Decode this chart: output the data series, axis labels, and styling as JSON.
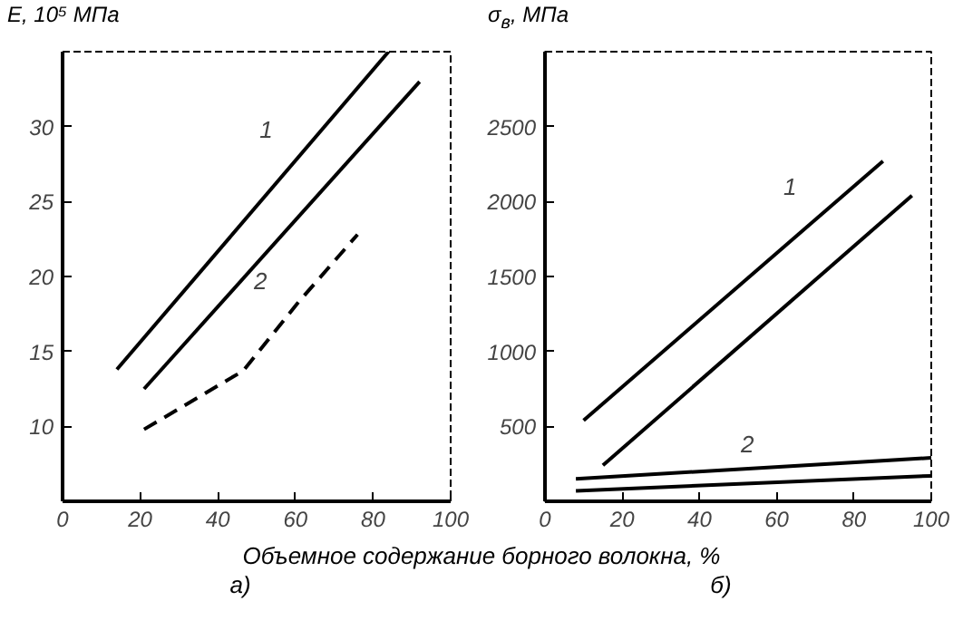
{
  "chart_data": [
    {
      "type": "line",
      "ylabel": "E, 10⁵ МПа",
      "xlabel": "Объемное содержание борного волокна, %",
      "xlim": [
        0,
        100
      ],
      "xticks": [
        0,
        20,
        40,
        60,
        80,
        100
      ],
      "ylim": [
        5,
        35
      ],
      "yticks": [
        10,
        15,
        20,
        25,
        30
      ],
      "grid": false,
      "series": [
        {
          "color": "#000000",
          "line_style": "solid",
          "x": [
            14,
            84
          ],
          "values": [
            13.8,
            35
          ]
        },
        {
          "color": "#000000",
          "line_style": "solid",
          "x": [
            21,
            92
          ],
          "values": [
            12.5,
            33
          ]
        },
        {
          "color": "#000000",
          "line_style": "dashed",
          "x": [
            21,
            46.5,
            60.5,
            76
          ],
          "values": [
            9.8,
            13.7,
            18.2,
            22.8
          ]
        }
      ],
      "annotations": [
        {
          "text": "1",
          "x": 62,
          "y": 28.3
        },
        {
          "text": "2",
          "x": 60.5,
          "y": 18.2
        },
        "а)"
      ]
    },
    {
      "type": "line",
      "ylabel": "σ$_{в}$, МПа",
      "xlim": [
        0,
        100
      ],
      "xticks": [
        0,
        20,
        40,
        60,
        80,
        100
      ],
      "ylim": [
        0,
        3000
      ],
      "yticks": [
        500,
        1000,
        1500,
        2000,
        2500
      ],
      "grid": false,
      "series": [
        {
          "color": "#000000",
          "line_style": "solid",
          "x": [
            10,
            87.5
          ],
          "values": [
            540,
            2270
          ]
        },
        {
          "color": "#000000",
          "line_style": "solid",
          "x": [
            15,
            95
          ],
          "values": [
            240,
            2040
          ]
        },
        {
          "color": "#000000",
          "line_style": "solid",
          "x": [
            8,
            100
          ],
          "values": [
            150,
            290
          ]
        },
        {
          "color": "#000000",
          "line_style": "solid",
          "x": [
            8,
            100
          ],
          "values": [
            70,
            170
          ]
        }
      ],
      "annotations": [
        {
          "text": "1",
          "x": 73,
          "y": 1950
        },
        {
          "text": "2",
          "x": 62,
          "y": 230
        },
        "б)"
      ]
    }
  ]
}
